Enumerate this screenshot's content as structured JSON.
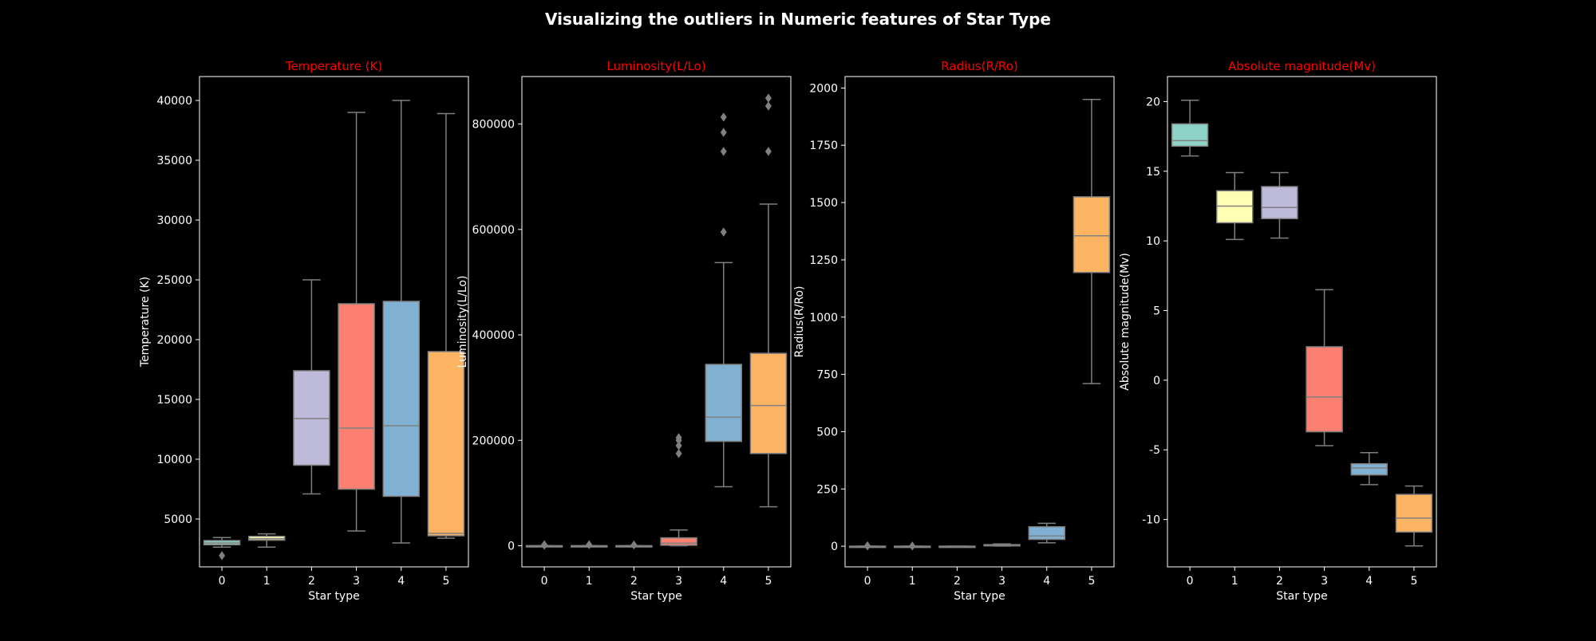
{
  "suptitle": "Visualizing the outliers in Numeric features of Star Type",
  "colors": {
    "background": "#000000",
    "title": "#ff0000",
    "text": "#ffffff",
    "box_line": "#808080",
    "palette": [
      "#8dd3c7",
      "#ffffb3",
      "#bebada",
      "#fb8072",
      "#80b1d3",
      "#fdb462"
    ]
  },
  "chart_data": [
    {
      "type": "box",
      "title": "Temperature (K)",
      "xlabel": "Star type",
      "ylabel": "Temperature (K)",
      "categories": [
        "0",
        "1",
        "2",
        "3",
        "4",
        "5"
      ],
      "ylim": [
        1000,
        42000
      ],
      "yticks": [
        5000,
        10000,
        15000,
        20000,
        25000,
        30000,
        35000,
        40000
      ],
      "boxes": [
        {
          "whislo": 2650,
          "q1": 2850,
          "med": 3000,
          "q3": 3200,
          "whishi": 3450,
          "fliers": [
            1940
          ]
        },
        {
          "whislo": 2650,
          "q1": 3230,
          "med": 3350,
          "q3": 3550,
          "whishi": 3760,
          "fliers": []
        },
        {
          "whislo": 7100,
          "q1": 9500,
          "med": 13400,
          "q3": 17400,
          "whishi": 25000,
          "fliers": []
        },
        {
          "whislo": 4000,
          "q1": 7500,
          "med": 12600,
          "q3": 23000,
          "whishi": 39000,
          "fliers": []
        },
        {
          "whislo": 3000,
          "q1": 6900,
          "med": 12800,
          "q3": 23200,
          "whishi": 40000,
          "fliers": []
        },
        {
          "whislo": 3400,
          "q1": 3600,
          "med": 3800,
          "q3": 19000,
          "whishi": 38900,
          "fliers": []
        }
      ]
    },
    {
      "type": "box",
      "title": "Luminosity(L/Lo)",
      "xlabel": "Star type",
      "ylabel": "Luminosity(L/Lo)",
      "categories": [
        "0",
        "1",
        "2",
        "3",
        "4",
        "5"
      ],
      "ylim": [
        -40000,
        890000
      ],
      "yticks": [
        0,
        200000,
        400000,
        600000,
        800000
      ],
      "boxes": [
        {
          "whislo": 0,
          "q1": 0,
          "med": 0,
          "q3": 0,
          "whishi": 0,
          "fliers": [
            1000,
            2000
          ]
        },
        {
          "whislo": 0,
          "q1": 0,
          "med": 0,
          "q3": 0,
          "whishi": 0,
          "fliers": [
            2000
          ]
        },
        {
          "whislo": 0,
          "q1": 0,
          "med": 0,
          "q3": 0,
          "whishi": 0,
          "fliers": [
            1500
          ]
        },
        {
          "whislo": 0,
          "q1": 1000,
          "med": 5000,
          "q3": 15000,
          "whishi": 30000,
          "fliers": [
            175000,
            190000,
            200000,
            205000
          ]
        },
        {
          "whislo": 112000,
          "q1": 198000,
          "med": 244000,
          "q3": 344000,
          "whishi": 537000,
          "fliers": [
            595000,
            748000,
            784000,
            813000
          ]
        },
        {
          "whislo": 74000,
          "q1": 175000,
          "med": 266000,
          "q3": 365000,
          "whishi": 648000,
          "fliers": [
            748000,
            834000,
            849000
          ]
        }
      ]
    },
    {
      "type": "box",
      "title": "Radius(R/Ro)",
      "xlabel": "Star type",
      "ylabel": "Radius(R/Ro)",
      "categories": [
        "0",
        "1",
        "2",
        "3",
        "4",
        "5"
      ],
      "ylim": [
        -90,
        2050
      ],
      "yticks": [
        0,
        250,
        500,
        750,
        1000,
        1250,
        1500,
        1750,
        2000
      ],
      "boxes": [
        {
          "whislo": 0,
          "q1": 0,
          "med": 0,
          "q3": 0,
          "whishi": 0,
          "fliers": [
            1,
            2
          ]
        },
        {
          "whislo": 0,
          "q1": 0,
          "med": 0,
          "q3": 0,
          "whishi": 0,
          "fliers": [
            1
          ]
        },
        {
          "whislo": 0,
          "q1": 0,
          "med": 0,
          "q3": 0,
          "whishi": 0,
          "fliers": []
        },
        {
          "whislo": 1,
          "q1": 3,
          "med": 5,
          "q3": 7,
          "whishi": 10,
          "fliers": []
        },
        {
          "whislo": 15,
          "q1": 30,
          "med": 45,
          "q3": 85,
          "whishi": 100,
          "fliers": []
        },
        {
          "whislo": 710,
          "q1": 1195,
          "med": 1355,
          "q3": 1525,
          "whishi": 1950,
          "fliers": []
        }
      ]
    },
    {
      "type": "box",
      "title": "Absolute magnitude(Mv)",
      "xlabel": "Star type",
      "ylabel": "Absolute magnitude(Mv)",
      "categories": [
        "0",
        "1",
        "2",
        "3",
        "4",
        "5"
      ],
      "ylim": [
        -13.4,
        21.8
      ],
      "yticks": [
        -10,
        -5,
        0,
        5,
        10,
        15,
        20
      ],
      "boxes": [
        {
          "whislo": 16.1,
          "q1": 16.8,
          "med": 17.2,
          "q3": 18.4,
          "whishi": 20.1,
          "fliers": []
        },
        {
          "whislo": 10.1,
          "q1": 11.3,
          "med": 12.5,
          "q3": 13.6,
          "whishi": 14.9,
          "fliers": []
        },
        {
          "whislo": 10.2,
          "q1": 11.6,
          "med": 12.4,
          "q3": 13.9,
          "whishi": 14.9,
          "fliers": []
        },
        {
          "whislo": -4.7,
          "q1": -3.7,
          "med": -1.2,
          "q3": 2.4,
          "whishi": 6.5,
          "fliers": []
        },
        {
          "whislo": -7.5,
          "q1": -6.8,
          "med": -6.3,
          "q3": -6.0,
          "whishi": -5.2,
          "fliers": []
        },
        {
          "whislo": -11.9,
          "q1": -10.9,
          "med": -9.9,
          "q3": -8.2,
          "whishi": -7.6,
          "fliers": []
        }
      ]
    }
  ]
}
